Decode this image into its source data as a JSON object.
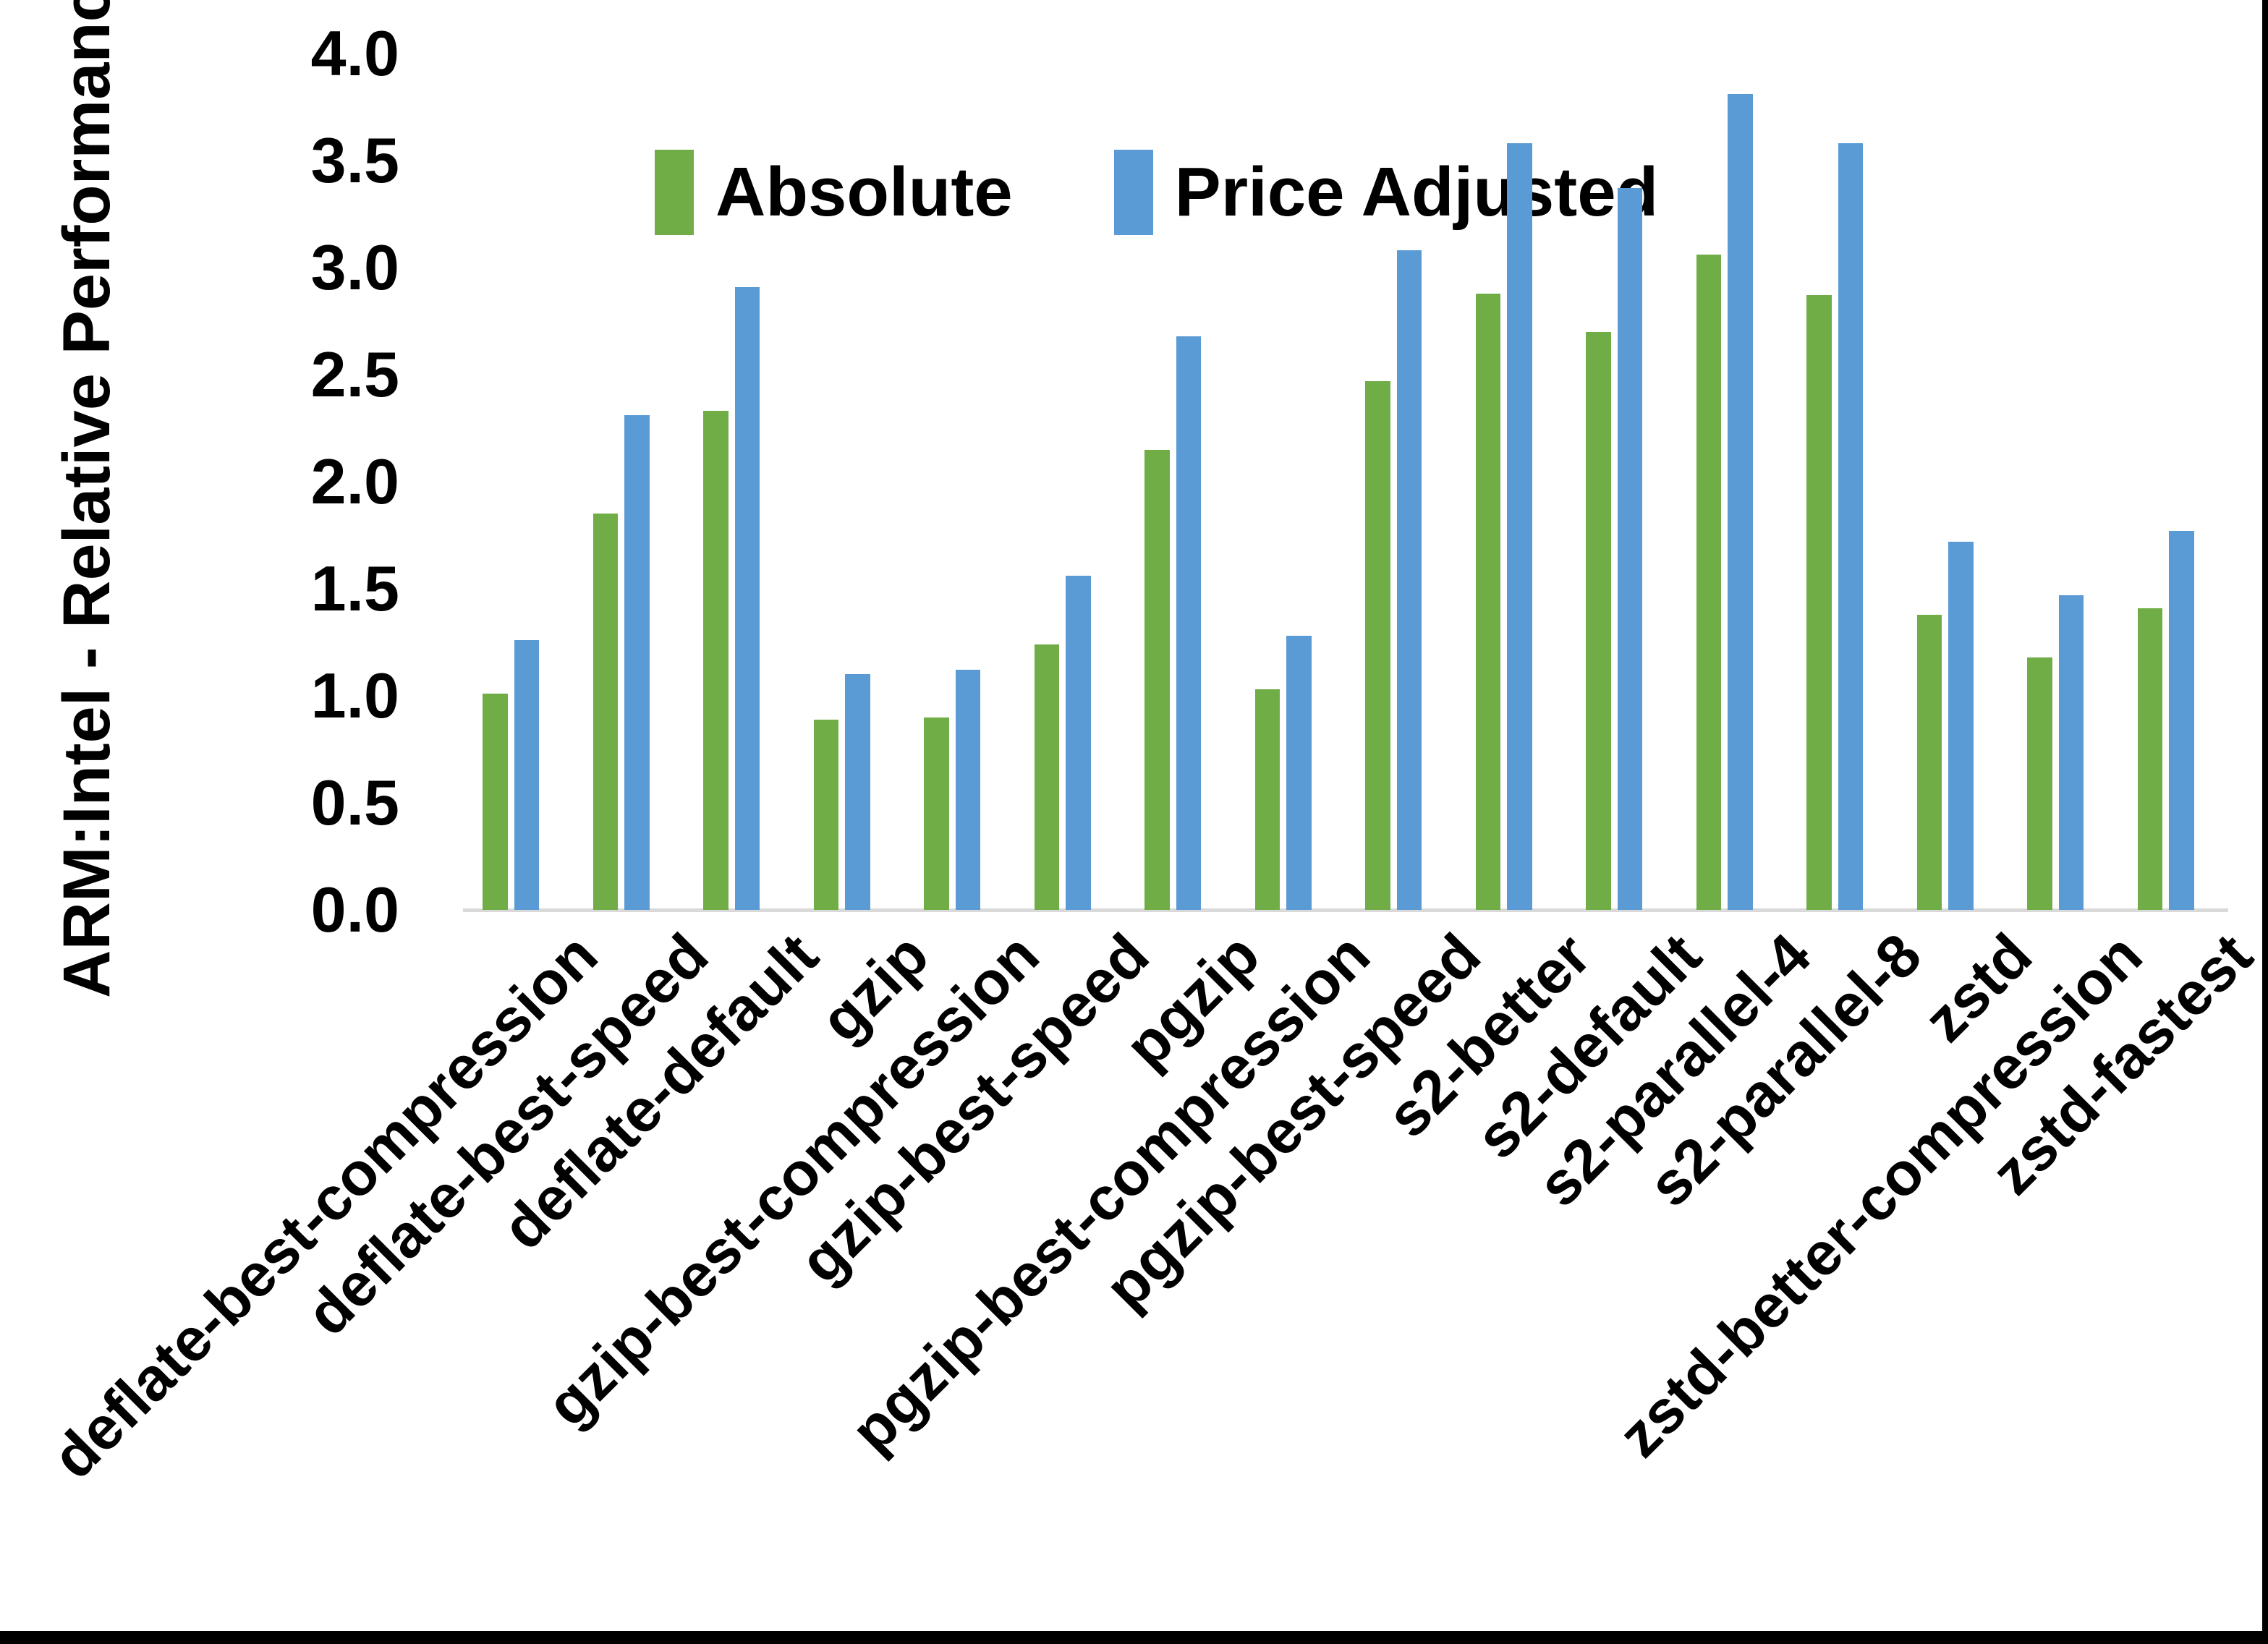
{
  "figure": {
    "background_color": "#FFFFFF",
    "frame_border_color": "#000000",
    "axis_line_color": "#D9D9D9",
    "text_color": "#000000"
  },
  "legend": {
    "items": [
      {
        "label": "Absolute",
        "color": "#70AD47"
      },
      {
        "label": "Price Adjusted",
        "color": "#5B9BD5"
      }
    ]
  },
  "chart_data": {
    "type": "bar",
    "title": "",
    "xlabel": "",
    "ylabel": "ARM:Intel - Relative Performance",
    "ylim": [
      0.0,
      4.0
    ],
    "ytick_values": [
      0.0,
      0.5,
      1.0,
      1.5,
      2.0,
      2.5,
      3.0,
      3.5,
      4.0
    ],
    "ytick_labels": [
      "0.0",
      "0.5",
      "1.0",
      "1.5",
      "2.0",
      "2.5",
      "3.0",
      "3.5",
      "4.0"
    ],
    "grid": false,
    "legend_position": "top-center",
    "categories": [
      "deflate-best-compression",
      "deflate-best-speed",
      "deflate-default",
      "gzip",
      "gzip-best-compression",
      "gzip-best-speed",
      "pgzip",
      "pgzip-best-compression",
      "pgzip-best-speed",
      "s2-better",
      "s2-default",
      "s2-parallel-4",
      "s2-parallel-8",
      "zstd",
      "zstd-better-compression",
      "zstd-fastest"
    ],
    "series": [
      {
        "name": "Absolute",
        "color": "#70AD47",
        "values": [
          1.01,
          1.85,
          2.33,
          0.89,
          0.9,
          1.24,
          2.15,
          1.03,
          2.47,
          2.88,
          2.7,
          3.06,
          2.87,
          1.38,
          1.18,
          1.41
        ]
      },
      {
        "name": "Price Adjusted",
        "color": "#5B9BD5",
        "values": [
          1.26,
          2.31,
          2.91,
          1.1,
          1.12,
          1.56,
          2.68,
          1.28,
          3.08,
          3.58,
          3.37,
          3.81,
          3.58,
          1.72,
          1.47,
          1.77
        ]
      }
    ]
  }
}
